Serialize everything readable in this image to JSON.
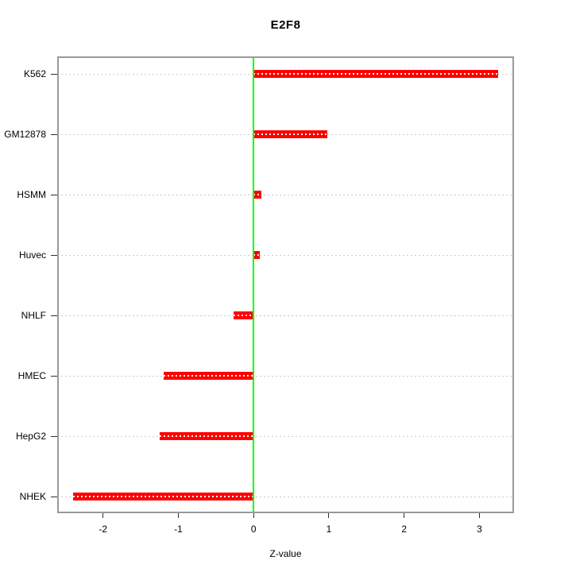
{
  "chart_data": {
    "type": "bar",
    "orientation": "horizontal",
    "title": "E2F8",
    "xlabel": "Z-value",
    "ylabel": "",
    "categories": [
      "K562",
      "GM12878",
      "HSMM",
      "Huvec",
      "NHLF",
      "HMEC",
      "HepG2",
      "NHEK"
    ],
    "values": [
      3.25,
      0.98,
      0.1,
      0.08,
      -0.27,
      -1.2,
      -1.25,
      -2.4
    ],
    "xlim": [
      -2.61,
      3.46
    ],
    "x_ticks": [
      -2,
      -1,
      0,
      1,
      2,
      3
    ],
    "zero_line_x": 0,
    "grid": "horizontal dotted line per category",
    "legend": "none",
    "colors": {
      "bar": "#ff0000",
      "zero_line": "#00ff00",
      "grid_line": "#c9c9c9",
      "plot_border": "#9a9a9a",
      "text": "#000000"
    }
  }
}
